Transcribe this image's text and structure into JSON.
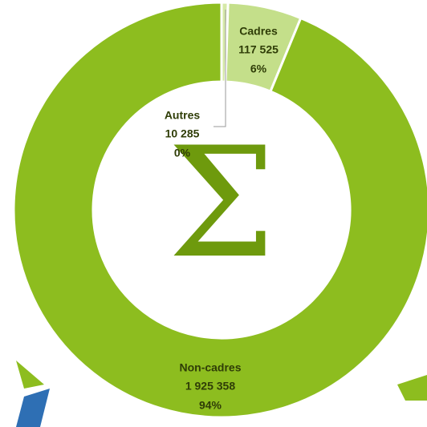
{
  "chart_data": {
    "type": "donut",
    "categories": [
      "Autres",
      "Cadres",
      "Non-cadres"
    ],
    "values": [
      10285,
      117525,
      1925358
    ],
    "value_labels": [
      "10 285",
      "117 525",
      "1 925 358"
    ],
    "percent_labels": [
      "0%",
      "6%",
      "94%"
    ],
    "colors": [
      "#d6e9a8",
      "#c4df8a",
      "#8dbd1f"
    ],
    "center_symbol": "Σ"
  }
}
